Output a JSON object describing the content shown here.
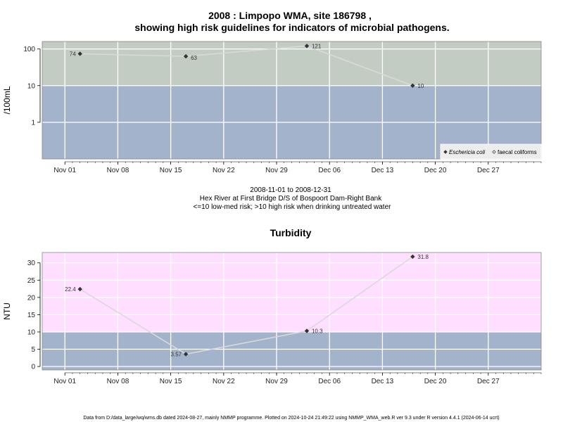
{
  "page": {
    "title_line1": "2008 : Limpopo WMA, site 186798 ,",
    "title_line2": "showing high risk guidelines for indicators of microbial pathogens.",
    "subtitle": [
      "2008-11-01 to 2008-12-31",
      "Hex River at First Bridge D/S of Bospoort Dam-Right Bank",
      "<=10 low-med risk; >10 high risk when drinking untreated water"
    ],
    "footer": "Data from D:/data_large/wq/wms.db dated 2024-08-27, mainly NMMP programme. Plotted on 2024-10-24 21:49:22 using NMMP_WMA_web.R ver 9.3 under R version 4.4.1 (2024-06-14 ucrt)"
  },
  "colors": {
    "low_band": "#a3b3cc",
    "high_band_micro": "#c3ccc2",
    "high_band_turb": "#ffdfff",
    "line": "#d9d9d9",
    "point": "#333333",
    "grid": "#ffffff"
  },
  "chart_data": [
    {
      "type": "line",
      "title": "",
      "ylabel": "/100mL",
      "y_scale": "log",
      "ylim": [
        0.1,
        160
      ],
      "yticks": [
        1,
        10,
        100
      ],
      "ytick_labels": [
        "1",
        "10",
        "100"
      ],
      "threshold": 10,
      "xlim": [
        "2008-10-29",
        "2009-01-03"
      ],
      "xticks": [
        "2008-11-01",
        "2008-11-08",
        "2008-11-15",
        "2008-11-22",
        "2008-11-29",
        "2008-12-06",
        "2008-12-13",
        "2008-12-20",
        "2008-12-27"
      ],
      "xtick_labels": [
        "Nov 01",
        "Nov 08",
        "Nov 15",
        "Nov 22",
        "Nov 29",
        "Dec 06",
        "Dec 13",
        "Dec 20",
        "Dec 27"
      ],
      "series": [
        {
          "name": "Eschericia coli",
          "marker": "filled-diamond",
          "x": [
            "2008-11-03",
            "2008-11-17",
            "2008-12-03",
            "2008-12-17"
          ],
          "y": [
            74,
            63,
            121,
            10
          ],
          "labels": [
            "74",
            "63",
            "121",
            "10"
          ]
        }
      ],
      "legend": {
        "placement": "bottom-right",
        "entries": [
          {
            "name": "Eschericia coli",
            "marker": "filled-diamond"
          },
          {
            "name": "faecal coliforms",
            "marker": "open-diamond"
          }
        ]
      }
    },
    {
      "type": "line",
      "title": "Turbidity",
      "ylabel": "NTU",
      "y_scale": "linear",
      "ylim": [
        -1,
        33
      ],
      "yticks": [
        0,
        5,
        10,
        15,
        20,
        25,
        30
      ],
      "ytick_labels": [
        "0",
        "5",
        "10",
        "15",
        "20",
        "25",
        "30"
      ],
      "threshold": 10,
      "xlim": [
        "2008-10-29",
        "2009-01-03"
      ],
      "xticks": [
        "2008-11-01",
        "2008-11-08",
        "2008-11-15",
        "2008-11-22",
        "2008-11-29",
        "2008-12-06",
        "2008-12-13",
        "2008-12-20",
        "2008-12-27"
      ],
      "xtick_labels": [
        "Nov 01",
        "Nov 08",
        "Nov 15",
        "Nov 22",
        "Nov 29",
        "Dec 06",
        "Dec 13",
        "Dec 20",
        "Dec 27"
      ],
      "series": [
        {
          "name": "Turbidity",
          "marker": "filled-diamond",
          "x": [
            "2008-11-03",
            "2008-11-17",
            "2008-12-03",
            "2008-12-17"
          ],
          "y": [
            22.4,
            3.57,
            10.3,
            31.8
          ],
          "labels": [
            "22.4",
            "3.57",
            "10.3",
            "31.8"
          ]
        }
      ]
    }
  ]
}
